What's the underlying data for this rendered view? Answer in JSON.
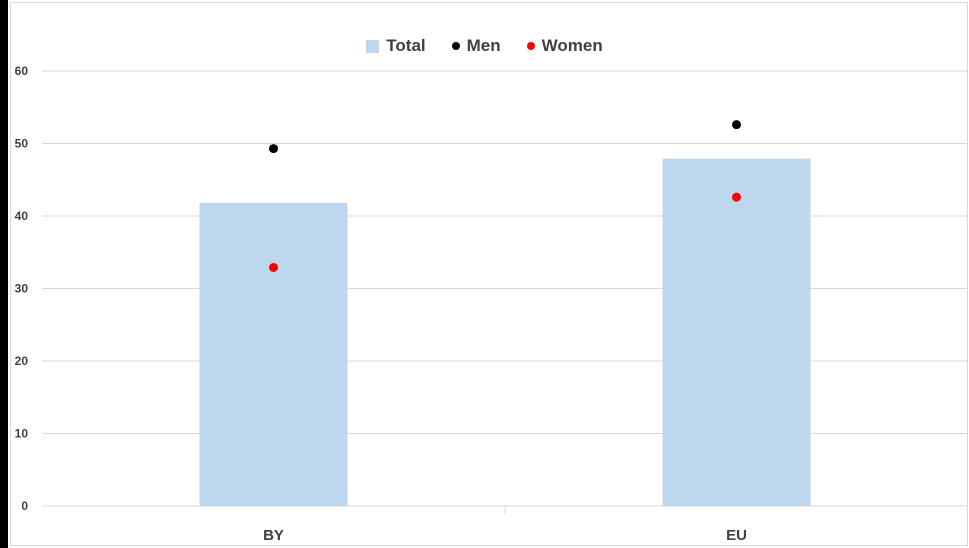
{
  "chart_data": {
    "type": "bar",
    "categories": [
      "BY",
      "EU"
    ],
    "series": [
      {
        "name": "Total",
        "kind": "bar",
        "values": [
          41.8,
          47.9
        ],
        "color": "#bdd7ee"
      },
      {
        "name": "Men",
        "kind": "dot",
        "values": [
          49.3,
          52.6
        ],
        "color": "#000000"
      },
      {
        "name": "Women",
        "kind": "dot",
        "values": [
          32.9,
          42.6
        ],
        "color": "#ff0000"
      }
    ],
    "yticks": [
      0,
      10,
      20,
      30,
      40,
      50,
      60
    ],
    "ylim": [
      0,
      60
    ],
    "grid": true,
    "legend_position": "top-center",
    "title": "",
    "xlabel": "",
    "ylabel": ""
  }
}
